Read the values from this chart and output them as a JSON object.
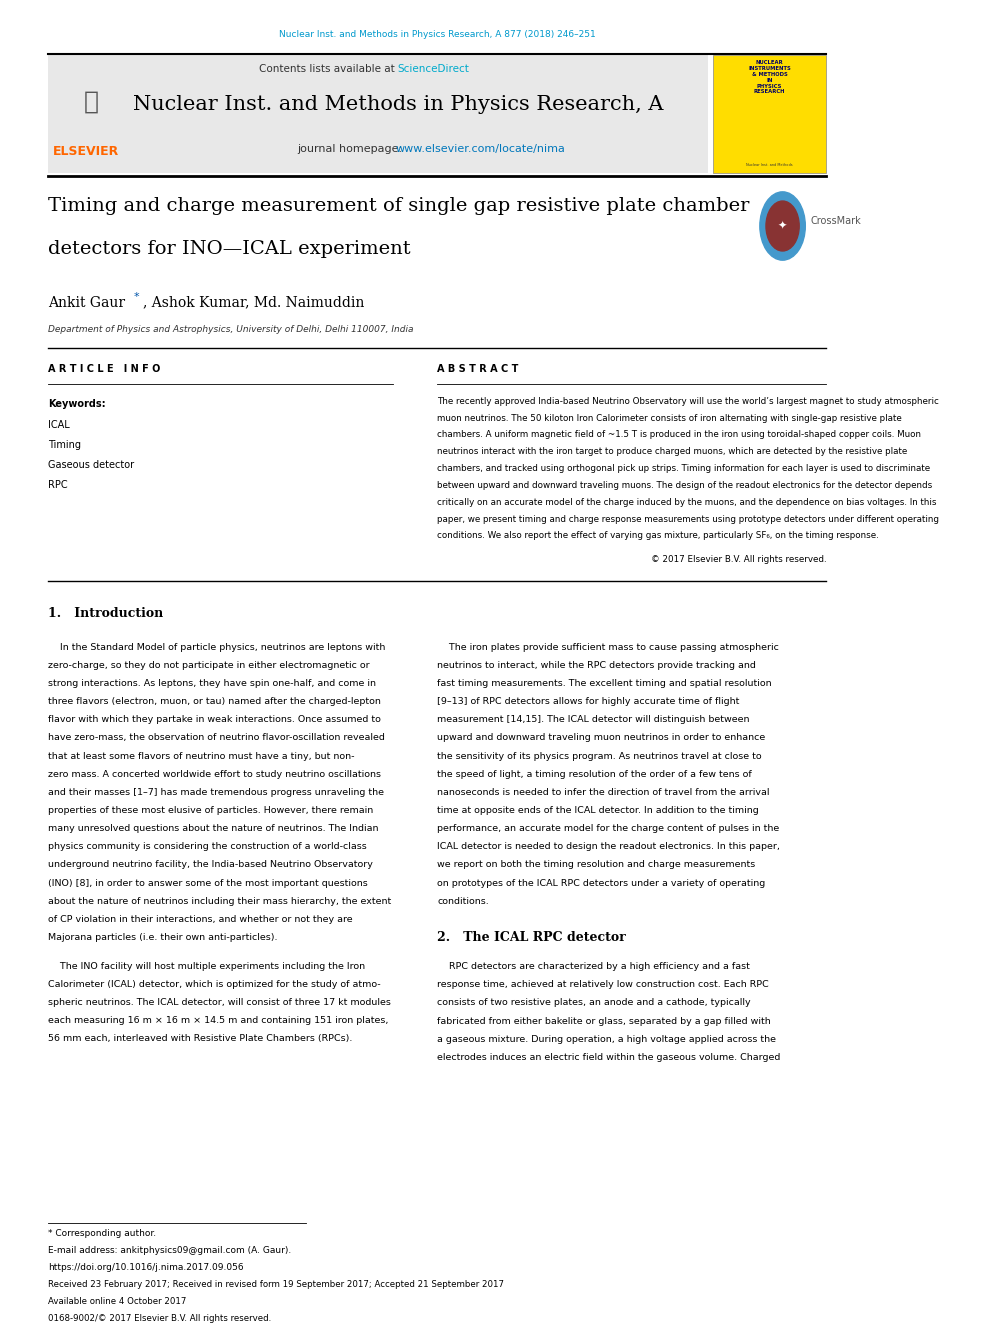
{
  "page_width": 9.92,
  "page_height": 13.23,
  "background_color": "#ffffff",
  "top_journal_line": "Nuclear Inst. and Methods in Physics Research, A 877 (2018) 246–251",
  "top_journal_color": "#0099cc",
  "header_bg": "#e8e8e8",
  "header_journal_title": "Nuclear Inst. and Methods in Physics Research, A",
  "header_contents": "Contents lists available at ",
  "header_science_direct": "ScienceDirect",
  "header_science_direct_color": "#00aacc",
  "header_homepage_prefix": "journal homepage: ",
  "header_homepage_link": "www.elsevier.com/locate/nima",
  "header_homepage_color": "#0077bb",
  "elsevier_color": "#ff6600",
  "paper_title_line1": "Timing and charge measurement of single gap resistive plate chamber",
  "paper_title_line2": "detectors for INO—ICAL experiment",
  "authors_star_color": "#0055aa",
  "affiliation": "Department of Physics and Astrophysics, University of Delhi, Delhi 110007, India",
  "article_info_label": "A R T I C L E   I N F O",
  "abstract_label": "A B S T R A C T",
  "keywords_label": "Keywords:",
  "keywords": [
    "ICAL",
    "Timing",
    "Gaseous detector",
    "RPC"
  ],
  "copyright_text": "© 2017 Elsevier B.V. All rights reserved.",
  "section1_title": "1.   Introduction",
  "section2_title": "2.   The ICAL RPC detector",
  "footnote_star": "* Corresponding author.",
  "footnote_email": "E-mail address: ankitphysics09@gmail.com (A. Gaur).",
  "footnote_doi": "https://doi.org/10.1016/j.nima.2017.09.056",
  "footnote_received": "Received 23 February 2017; Received in revised form 19 September 2017; Accepted 21 September 2017",
  "footnote_available": "Available online 4 October 2017",
  "footnote_issn": "0168-9002/© 2017 Elsevier B.V. All rights reserved."
}
